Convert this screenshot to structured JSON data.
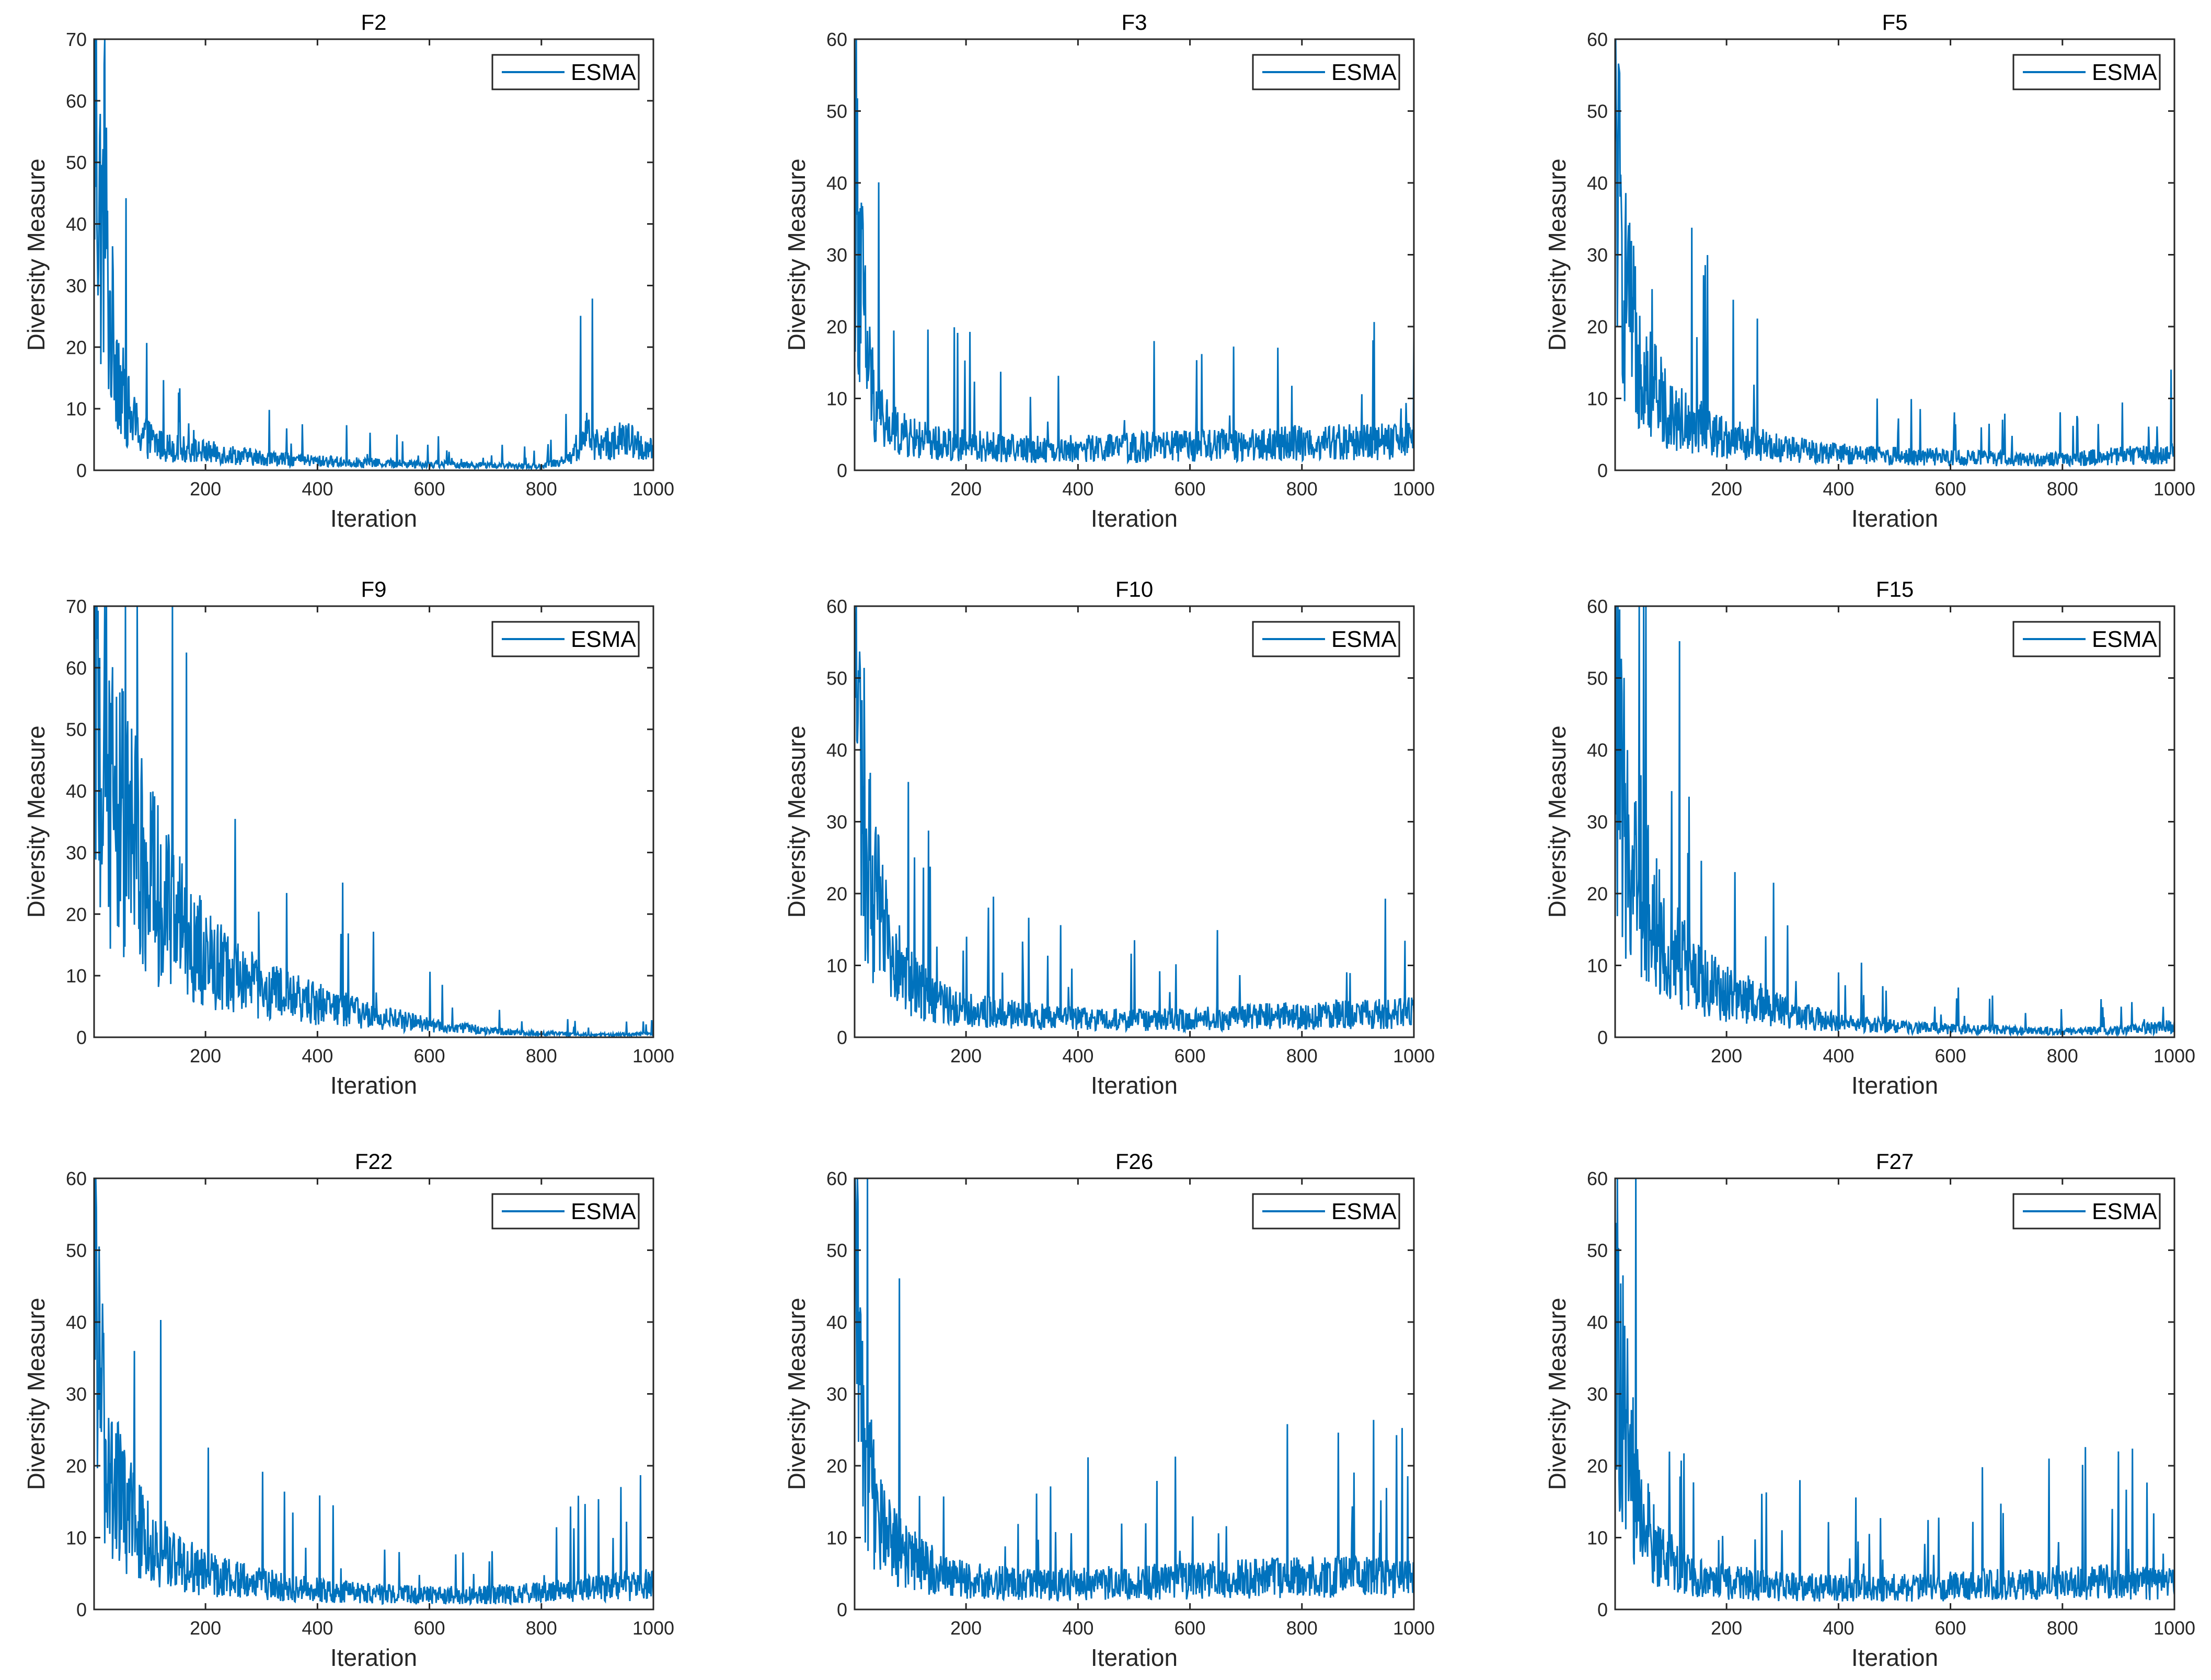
{
  "figure": {
    "description_labels": {
      "series_name": "ESMA"
    },
    "line_color": "#0072BD"
  },
  "chart_data": [
    {
      "id": "F2",
      "type": "line",
      "title": "F2",
      "xlabel": "Iteration",
      "ylabel": "Diversity Measure",
      "xlim": [
        1,
        1000
      ],
      "ylim": [
        0,
        70
      ],
      "xticks": [
        200,
        400,
        600,
        800,
        1000
      ],
      "yticks": [
        0,
        10,
        20,
        30,
        40,
        50,
        60,
        70
      ],
      "legend": {
        "entries": [
          "ESMA"
        ],
        "location": "top-right"
      },
      "series": [
        {
          "name": "ESMA",
          "color": "#0072BD",
          "x": [
            1,
            5,
            10,
            15,
            20,
            25,
            30,
            40,
            50,
            60,
            70,
            80,
            100,
            120,
            150,
            200,
            250,
            300,
            400,
            500,
            600,
            700,
            800,
            850,
            880,
            900,
            950,
            1000
          ],
          "values": [
            62,
            56,
            45,
            37,
            48,
            30,
            24,
            20,
            13,
            10,
            8,
            6.5,
            5,
            4,
            3.5,
            3,
            2.5,
            2,
            1.5,
            1.2,
            1,
            0.8,
            0.6,
            2,
            6,
            4,
            5,
            3
          ]
        }
      ]
    },
    {
      "id": "F3",
      "type": "line",
      "title": "F3",
      "xlabel": "Iteration",
      "ylabel": "Diversity Measure",
      "xlim": [
        1,
        1000
      ],
      "ylim": [
        0,
        60
      ],
      "xticks": [
        200,
        400,
        600,
        800,
        1000
      ],
      "yticks": [
        0,
        10,
        20,
        30,
        40,
        50,
        60
      ],
      "legend": {
        "entries": [
          "ESMA"
        ],
        "location": "top-right"
      },
      "series": [
        {
          "name": "ESMA",
          "color": "#0072BD",
          "x": [
            1,
            5,
            10,
            15,
            20,
            30,
            40,
            50,
            70,
            100,
            150,
            200,
            300,
            400,
            500,
            600,
            700,
            800,
            900,
            1000
          ],
          "values": [
            49,
            38,
            30,
            24,
            18,
            12,
            9,
            7,
            5.5,
            4.5,
            3.8,
            3.5,
            3,
            3,
            3.2,
            3.4,
            3.6,
            3.8,
            4,
            4
          ]
        }
      ]
    },
    {
      "id": "F5",
      "type": "line",
      "title": "F5",
      "xlabel": "Iteration",
      "ylabel": "Diversity Measure",
      "xlim": [
        1,
        1000
      ],
      "ylim": [
        0,
        60
      ],
      "xticks": [
        200,
        400,
        600,
        800,
        1000
      ],
      "yticks": [
        0,
        10,
        20,
        30,
        40,
        50,
        60
      ],
      "legend": {
        "entries": [
          "ESMA"
        ],
        "location": "top-right"
      },
      "series": [
        {
          "name": "ESMA",
          "color": "#0072BD",
          "x": [
            1,
            5,
            10,
            20,
            30,
            50,
            70,
            100,
            150,
            200,
            250,
            300,
            400,
            500,
            600,
            700,
            800,
            900,
            1000
          ],
          "values": [
            50,
            42,
            33,
            24,
            20,
            15,
            11,
            8,
            6,
            4.5,
            3.8,
            3,
            2.3,
            2,
            1.8,
            1.6,
            1.5,
            2,
            2.5
          ]
        }
      ]
    },
    {
      "id": "F9",
      "type": "line",
      "title": "F9",
      "xlabel": "Iteration",
      "ylabel": "Diversity Measure",
      "xlim": [
        1,
        1000
      ],
      "ylim": [
        0,
        70
      ],
      "xticks": [
        200,
        400,
        600,
        800,
        1000
      ],
      "yticks": [
        0,
        10,
        20,
        30,
        40,
        50,
        60,
        70
      ],
      "legend": {
        "entries": [
          "ESMA"
        ],
        "location": "top-right"
      },
      "series": [
        {
          "name": "ESMA",
          "color": "#0072BD",
          "x": [
            1,
            10,
            20,
            40,
            60,
            80,
            100,
            130,
            160,
            200,
            250,
            300,
            350,
            400,
            450,
            500,
            550,
            600,
            700,
            800,
            900,
            1000
          ],
          "values": [
            62,
            48,
            43,
            38,
            33,
            30,
            26,
            21,
            17,
            13,
            10,
            8,
            6.5,
            5.5,
            4.5,
            3.5,
            2.7,
            2,
            1.1,
            0.6,
            0.4,
            0.5
          ]
        }
      ]
    },
    {
      "id": "F10",
      "type": "line",
      "title": "F10",
      "xlabel": "Iteration",
      "ylabel": "Diversity Measure",
      "xlim": [
        1,
        1000
      ],
      "ylim": [
        0,
        60
      ],
      "xticks": [
        200,
        400,
        600,
        800,
        1000
      ],
      "yticks": [
        0,
        10,
        20,
        30,
        40,
        50,
        60
      ],
      "legend": {
        "entries": [
          "ESMA"
        ],
        "location": "top-right"
      },
      "series": [
        {
          "name": "ESMA",
          "color": "#0072BD",
          "x": [
            1,
            5,
            10,
            20,
            30,
            50,
            70,
            100,
            150,
            200,
            300,
            400,
            500,
            600,
            700,
            800,
            900,
            1000
          ],
          "values": [
            58,
            48,
            40,
            30,
            22,
            15,
            11,
            7.5,
            5,
            3.8,
            3,
            2.6,
            2.4,
            2.5,
            2.8,
            3,
            3.2,
            3.4
          ]
        }
      ]
    },
    {
      "id": "F15",
      "type": "line",
      "title": "F15",
      "xlabel": "Iteration",
      "ylabel": "Diversity Measure",
      "xlim": [
        1,
        1000
      ],
      "ylim": [
        0,
        60
      ],
      "xticks": [
        200,
        400,
        600,
        800,
        1000
      ],
      "yticks": [
        0,
        10,
        20,
        30,
        40,
        50,
        60
      ],
      "legend": {
        "entries": [
          "ESMA"
        ],
        "location": "top-right"
      },
      "series": [
        {
          "name": "ESMA",
          "color": "#0072BD",
          "x": [
            1,
            5,
            10,
            20,
            40,
            60,
            80,
            100,
            150,
            200,
            250,
            300,
            400,
            500,
            600,
            700,
            800,
            900,
            1000
          ],
          "values": [
            54,
            42,
            35,
            29,
            24,
            19,
            15,
            12,
            8,
            6,
            5,
            3.5,
            2,
            1.5,
            1.2,
            1,
            0.8,
            1,
            1.5
          ]
        }
      ]
    },
    {
      "id": "F22",
      "type": "line",
      "title": "F22",
      "xlabel": "Iteration",
      "ylabel": "Diversity Measure",
      "xlim": [
        1,
        1000
      ],
      "ylim": [
        0,
        60
      ],
      "xticks": [
        200,
        400,
        600,
        800,
        1000
      ],
      "yticks": [
        0,
        10,
        20,
        30,
        40,
        50,
        60
      ],
      "legend": {
        "entries": [
          "ESMA"
        ],
        "location": "top-right"
      },
      "series": [
        {
          "name": "ESMA",
          "color": "#0072BD",
          "x": [
            1,
            5,
            10,
            20,
            30,
            50,
            70,
            100,
            150,
            200,
            300,
            400,
            500,
            600,
            700,
            800,
            900,
            1000
          ],
          "values": [
            58,
            45,
            33,
            23,
            19,
            15,
            12,
            9,
            6.5,
            5,
            3.5,
            2.7,
            2.2,
            2,
            2,
            2.3,
            3,
            3.5
          ]
        }
      ]
    },
    {
      "id": "F26",
      "type": "line",
      "title": "F26",
      "xlabel": "Iteration",
      "ylabel": "Diversity Measure",
      "xlim": [
        1,
        1000
      ],
      "ylim": [
        0,
        60
      ],
      "xticks": [
        200,
        400,
        600,
        800,
        1000
      ],
      "yticks": [
        0,
        10,
        20,
        30,
        40,
        50,
        60
      ],
      "legend": {
        "entries": [
          "ESMA"
        ],
        "location": "top-right"
      },
      "series": [
        {
          "name": "ESMA",
          "color": "#0072BD",
          "x": [
            1,
            5,
            10,
            20,
            30,
            50,
            70,
            100,
            150,
            200,
            300,
            400,
            500,
            600,
            700,
            800,
            900,
            1000
          ],
          "values": [
            53,
            40,
            32,
            22,
            17,
            12,
            9,
            7,
            5,
            4.2,
            3.6,
            3.5,
            3.8,
            4,
            4.3,
            4.5,
            4.5,
            4.2
          ]
        }
      ]
    },
    {
      "id": "F27",
      "type": "line",
      "title": "F27",
      "xlabel": "Iteration",
      "ylabel": "Diversity Measure",
      "xlim": [
        1,
        1000
      ],
      "ylim": [
        0,
        60
      ],
      "xticks": [
        200,
        400,
        600,
        800,
        1000
      ],
      "yticks": [
        0,
        10,
        20,
        30,
        40,
        50,
        60
      ],
      "legend": {
        "entries": [
          "ESMA"
        ],
        "location": "top-right"
      },
      "series": [
        {
          "name": "ESMA",
          "color": "#0072BD",
          "x": [
            1,
            5,
            10,
            20,
            30,
            50,
            70,
            100,
            150,
            200,
            300,
            400,
            500,
            600,
            700,
            800,
            900,
            1000
          ],
          "values": [
            50,
            42,
            34,
            25,
            19,
            13,
            9,
            6.5,
            4.5,
            3.8,
            3.2,
            3,
            3,
            3.2,
            3.5,
            3.8,
            3.8,
            3.6
          ]
        }
      ]
    }
  ]
}
